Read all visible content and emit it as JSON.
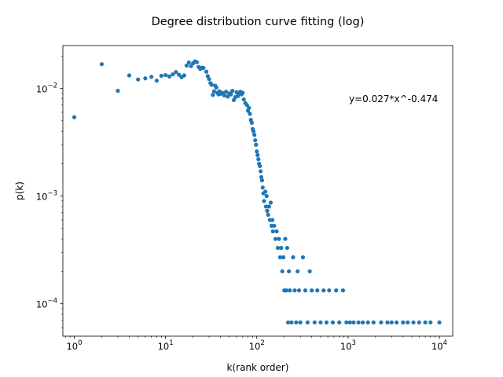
{
  "chart_data": {
    "type": "scatter",
    "title": "Degree distribution curve fitting (log)",
    "xlabel": "k(rank order)",
    "ylabel": "p(k)",
    "xscale": "log",
    "yscale": "log",
    "xlim": [
      0.75,
      14000
    ],
    "ylim": [
      5e-05,
      0.025
    ],
    "x_ticks": [
      {
        "value": 1,
        "label": "10",
        "exp": "0"
      },
      {
        "value": 10,
        "label": "10",
        "exp": "1"
      },
      {
        "value": 100,
        "label": "10",
        "exp": "2"
      },
      {
        "value": 1000,
        "label": "10",
        "exp": "3"
      },
      {
        "value": 10000,
        "label": "10",
        "exp": "4"
      }
    ],
    "y_ticks": [
      {
        "value": 0.0001,
        "label": "10",
        "exp": "−4"
      },
      {
        "value": 0.001,
        "label": "10",
        "exp": "−3"
      },
      {
        "value": 0.01,
        "label": "10",
        "exp": "−2"
      }
    ],
    "annotation": "y=0.027*x^-0.474",
    "marker_color": "#1f77b4",
    "grid": false,
    "series": [
      {
        "points": [
          [
            1,
            0.0054
          ],
          [
            2,
            0.0168
          ],
          [
            3,
            0.0095
          ],
          [
            4,
            0.0132
          ],
          [
            5,
            0.0121
          ],
          [
            6,
            0.0124
          ],
          [
            7,
            0.0128
          ],
          [
            8,
            0.0118
          ],
          [
            9,
            0.0131
          ],
          [
            10,
            0.0133
          ],
          [
            11,
            0.0129
          ],
          [
            12,
            0.0135
          ],
          [
            13,
            0.0142
          ],
          [
            14,
            0.0134
          ],
          [
            15,
            0.0127
          ],
          [
            16,
            0.0132
          ],
          [
            17,
            0.0163
          ],
          [
            18,
            0.0174
          ],
          [
            19,
            0.0161
          ],
          [
            20,
            0.0171
          ],
          [
            21,
            0.0178
          ],
          [
            22,
            0.0175
          ],
          [
            23,
            0.0158
          ],
          [
            24,
            0.0152
          ],
          [
            25,
            0.0156
          ],
          [
            26,
            0.0155
          ],
          [
            28,
            0.0143
          ],
          [
            29,
            0.013
          ],
          [
            30,
            0.0122
          ],
          [
            31,
            0.0112
          ],
          [
            32,
            0.0108
          ],
          [
            33,
            0.0087
          ],
          [
            34,
            0.0094
          ],
          [
            35,
            0.0106
          ],
          [
            36,
            0.0102
          ],
          [
            37,
            0.0091
          ],
          [
            38,
            0.0088
          ],
          [
            39,
            0.0094
          ],
          [
            40,
            0.0089
          ],
          [
            42,
            0.0091
          ],
          [
            44,
            0.0086
          ],
          [
            46,
            0.0093
          ],
          [
            48,
            0.0084
          ],
          [
            50,
            0.009
          ],
          [
            52,
            0.0088
          ],
          [
            54,
            0.0095
          ],
          [
            56,
            0.0078
          ],
          [
            58,
            0.0083
          ],
          [
            60,
            0.0092
          ],
          [
            62,
            0.0085
          ],
          [
            64,
            0.009
          ],
          [
            66,
            0.0093
          ],
          [
            68,
            0.0088
          ],
          [
            70,
            0.0091
          ],
          [
            72,
            0.0079
          ],
          [
            75,
            0.0073
          ],
          [
            78,
            0.007
          ],
          [
            80,
            0.0062
          ],
          [
            82,
            0.0066
          ],
          [
            84,
            0.0058
          ],
          [
            86,
            0.0051
          ],
          [
            88,
            0.0048
          ],
          [
            90,
            0.0042
          ],
          [
            92,
            0.004
          ],
          [
            94,
            0.0037
          ],
          [
            96,
            0.0033
          ],
          [
            98,
            0.003
          ],
          [
            100,
            0.0026
          ],
          [
            102,
            0.0024
          ],
          [
            104,
            0.0022
          ],
          [
            106,
            0.002
          ],
          [
            108,
            0.0019
          ],
          [
            110,
            0.0017
          ],
          [
            112,
            0.0015
          ],
          [
            114,
            0.0014
          ],
          [
            116,
            0.0012
          ],
          [
            118,
            0.00106
          ],
          [
            120,
            0.0009
          ],
          [
            124,
            0.0011
          ],
          [
            126,
            0.0008
          ],
          [
            128,
            0.001
          ],
          [
            130,
            0.00073
          ],
          [
            133,
            0.00067
          ],
          [
            136,
            0.0008
          ],
          [
            139,
            0.0006
          ],
          [
            142,
            0.00087
          ],
          [
            145,
            0.00053
          ],
          [
            148,
            0.0006
          ],
          [
            150,
            0.00047
          ],
          [
            155,
            0.00053
          ],
          [
            160,
            0.0004
          ],
          [
            165,
            0.00047
          ],
          [
            170,
            0.00033
          ],
          [
            175,
            0.0004
          ],
          [
            180,
            0.00027
          ],
          [
            185,
            0.00033
          ],
          [
            190,
            0.0002
          ],
          [
            195,
            0.00027
          ],
          [
            200,
            0.000133
          ],
          [
            205,
            0.0004
          ],
          [
            210,
            0.000133
          ],
          [
            215,
            0.00033
          ],
          [
            220,
            6.7e-05
          ],
          [
            225,
            0.0002
          ],
          [
            230,
            0.000133
          ],
          [
            240,
            6.7e-05
          ],
          [
            250,
            0.00027
          ],
          [
            260,
            0.000133
          ],
          [
            270,
            6.7e-05
          ],
          [
            280,
            0.0002
          ],
          [
            290,
            0.000133
          ],
          [
            300,
            6.7e-05
          ],
          [
            320,
            0.00027
          ],
          [
            340,
            0.000133
          ],
          [
            360,
            6.7e-05
          ],
          [
            380,
            0.0002
          ],
          [
            400,
            0.000133
          ],
          [
            430,
            6.7e-05
          ],
          [
            460,
            0.000133
          ],
          [
            500,
            6.7e-05
          ],
          [
            540,
            0.000133
          ],
          [
            580,
            6.7e-05
          ],
          [
            620,
            0.000133
          ],
          [
            680,
            6.7e-05
          ],
          [
            740,
            0.000133
          ],
          [
            800,
            6.7e-05
          ],
          [
            880,
            0.000133
          ],
          [
            960,
            6.7e-05
          ],
          [
            1050,
            6.7e-05
          ],
          [
            1150,
            6.7e-05
          ],
          [
            1300,
            6.7e-05
          ],
          [
            1450,
            6.7e-05
          ],
          [
            1650,
            6.7e-05
          ],
          [
            1900,
            6.7e-05
          ],
          [
            2300,
            6.7e-05
          ],
          [
            2700,
            6.7e-05
          ],
          [
            3000,
            6.7e-05
          ],
          [
            3400,
            6.7e-05
          ],
          [
            4000,
            6.7e-05
          ],
          [
            4500,
            6.7e-05
          ],
          [
            5200,
            6.7e-05
          ],
          [
            6000,
            6.7e-05
          ],
          [
            7000,
            6.7e-05
          ],
          [
            8000,
            6.7e-05
          ],
          [
            10000,
            6.7e-05
          ]
        ]
      }
    ]
  }
}
